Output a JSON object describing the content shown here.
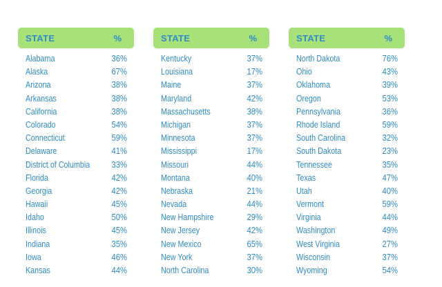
{
  "columns": [
    {
      "header": {
        "state": "STATE",
        "percent": "%"
      },
      "rows": [
        {
          "state": "Alabama",
          "value": "36%"
        },
        {
          "state": "Alaska",
          "value": "67%"
        },
        {
          "state": "Arizona",
          "value": "38%"
        },
        {
          "state": "Arkansas",
          "value": "38%"
        },
        {
          "state": "California",
          "value": "38%"
        },
        {
          "state": "Colorado",
          "value": "54%"
        },
        {
          "state": "Connecticut",
          "value": "59%"
        },
        {
          "state": "Delaware",
          "value": "41%"
        },
        {
          "state": "District of Columbia",
          "value": "33%"
        },
        {
          "state": "Florida",
          "value": "42%"
        },
        {
          "state": "Georgia",
          "value": "42%"
        },
        {
          "state": "Hawaii",
          "value": "45%"
        },
        {
          "state": "Idaho",
          "value": "50%"
        },
        {
          "state": "Illinois",
          "value": "45%"
        },
        {
          "state": "Indiana",
          "value": "35%"
        },
        {
          "state": "Iowa",
          "value": "46%"
        },
        {
          "state": "Kansas",
          "value": "44%"
        }
      ]
    },
    {
      "header": {
        "state": "STATE",
        "percent": "%"
      },
      "rows": [
        {
          "state": "Kentucky",
          "value": "37%"
        },
        {
          "state": "Louisiana",
          "value": "17%"
        },
        {
          "state": "Maine",
          "value": "37%"
        },
        {
          "state": "Maryland",
          "value": "42%"
        },
        {
          "state": "Massachusetts",
          "value": "38%"
        },
        {
          "state": "Michigan",
          "value": "37%"
        },
        {
          "state": "Minnesota",
          "value": "37%"
        },
        {
          "state": "Mississippi",
          "value": "17%"
        },
        {
          "state": "Missouri",
          "value": "44%"
        },
        {
          "state": "Montana",
          "value": "40%"
        },
        {
          "state": "Nebraska",
          "value": "21%"
        },
        {
          "state": "Nevada",
          "value": "44%"
        },
        {
          "state": "New Hampshire",
          "value": "29%"
        },
        {
          "state": "New Jersey",
          "value": "42%"
        },
        {
          "state": "New Mexico",
          "value": "65%"
        },
        {
          "state": "New York",
          "value": "37%"
        },
        {
          "state": "North Carolina",
          "value": "30%"
        }
      ]
    },
    {
      "header": {
        "state": "STATE",
        "percent": "%"
      },
      "rows": [
        {
          "state": "North Dakota",
          "value": "76%"
        },
        {
          "state": "Ohio",
          "value": "43%"
        },
        {
          "state": "Oklahoma",
          "value": "39%"
        },
        {
          "state": "Oregon",
          "value": "53%"
        },
        {
          "state": "Pennsylvania",
          "value": "36%"
        },
        {
          "state": "Rhode Island",
          "value": "59%"
        },
        {
          "state": "South Carolina",
          "value": "32%"
        },
        {
          "state": "South Dakota",
          "value": "23%"
        },
        {
          "state": "Tennessee",
          "value": "35%"
        },
        {
          "state": "Texas",
          "value": "47%"
        },
        {
          "state": "Utah",
          "value": "40%"
        },
        {
          "state": "Vermont",
          "value": "59%"
        },
        {
          "state": "Virginia",
          "value": "44%"
        },
        {
          "state": "Washington",
          "value": "49%"
        },
        {
          "state": "West Virginia",
          "value": "27%"
        },
        {
          "state": "Wisconsin",
          "value": "37%"
        },
        {
          "state": "Wyoming",
          "value": "54%"
        }
      ]
    }
  ],
  "colors": {
    "header_bg": "#a8e07a",
    "text": "#2f8cc6",
    "page_bg": "#ffffff"
  }
}
